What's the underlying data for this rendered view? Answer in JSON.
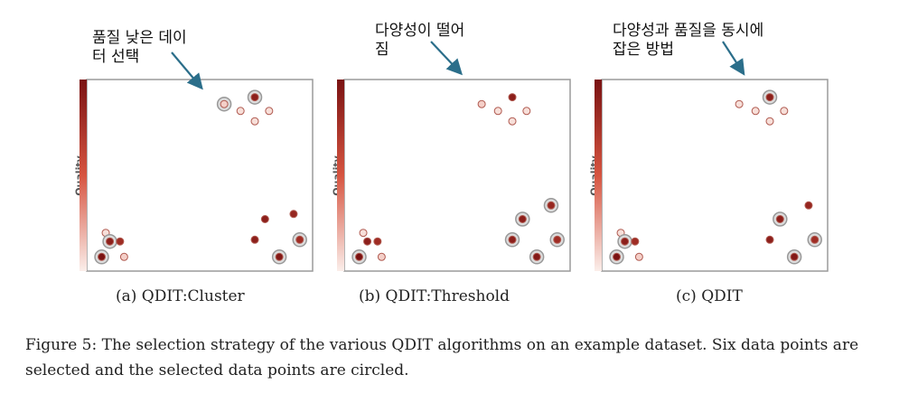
{
  "caption": "Figure 5: The selection strategy of the various QDIT algorithms on an example dataset. Six data points are selected and the selected data points are circled.",
  "colors": {
    "quality_high": "#7a1212",
    "quality_low": "#fbeeea",
    "selection_ring": "#999999",
    "arrow": "#2b6e8a",
    "frame": "#9a9a9a"
  },
  "chart_data": [
    {
      "type": "scatter",
      "subcaption": "(a) QDIT:Cluster",
      "annotation": "품질 낮은 데이\n터 선택",
      "ylabel": "Quality",
      "colorbar": "quality",
      "points": [
        {
          "x": 62,
          "y": 92,
          "quality": 0.1,
          "selected": true
        },
        {
          "x": 77,
          "y": 96,
          "quality": 0.9,
          "selected": true
        },
        {
          "x": 70,
          "y": 88,
          "quality": 0.05,
          "selected": false
        },
        {
          "x": 84,
          "y": 88,
          "quality": 0.05,
          "selected": false
        },
        {
          "x": 77,
          "y": 82,
          "quality": 0.05,
          "selected": false
        },
        {
          "x": 96,
          "y": 28,
          "quality": 0.85,
          "selected": false
        },
        {
          "x": 82,
          "y": 25,
          "quality": 0.9,
          "selected": false
        },
        {
          "x": 77,
          "y": 13,
          "quality": 0.9,
          "selected": false
        },
        {
          "x": 99,
          "y": 13,
          "quality": 0.8,
          "selected": true
        },
        {
          "x": 89,
          "y": 3,
          "quality": 0.95,
          "selected": true
        },
        {
          "x": 4,
          "y": 17,
          "quality": 0.05,
          "selected": false
        },
        {
          "x": 6,
          "y": 12,
          "quality": 0.9,
          "selected": true
        },
        {
          "x": 11,
          "y": 12,
          "quality": 0.8,
          "selected": false
        },
        {
          "x": 2,
          "y": 3,
          "quality": 1.0,
          "selected": true
        },
        {
          "x": 13,
          "y": 3,
          "quality": 0.1,
          "selected": false
        }
      ]
    },
    {
      "type": "scatter",
      "subcaption": "(b) QDIT:Threshold",
      "annotation": "다양성이 떨어\n짐",
      "ylabel": "Quality",
      "colorbar": "quality",
      "points": [
        {
          "x": 62,
          "y": 92,
          "quality": 0.1,
          "selected": false
        },
        {
          "x": 77,
          "y": 96,
          "quality": 0.9,
          "selected": false
        },
        {
          "x": 70,
          "y": 88,
          "quality": 0.05,
          "selected": false
        },
        {
          "x": 84,
          "y": 88,
          "quality": 0.05,
          "selected": false
        },
        {
          "x": 77,
          "y": 82,
          "quality": 0.05,
          "selected": false
        },
        {
          "x": 96,
          "y": 33,
          "quality": 0.85,
          "selected": true
        },
        {
          "x": 82,
          "y": 25,
          "quality": 0.9,
          "selected": true
        },
        {
          "x": 77,
          "y": 13,
          "quality": 0.9,
          "selected": true
        },
        {
          "x": 99,
          "y": 13,
          "quality": 0.8,
          "selected": true
        },
        {
          "x": 89,
          "y": 3,
          "quality": 0.95,
          "selected": true
        },
        {
          "x": 4,
          "y": 17,
          "quality": 0.05,
          "selected": false
        },
        {
          "x": 6,
          "y": 12,
          "quality": 0.9,
          "selected": false
        },
        {
          "x": 11,
          "y": 12,
          "quality": 0.8,
          "selected": false
        },
        {
          "x": 2,
          "y": 3,
          "quality": 1.0,
          "selected": true
        },
        {
          "x": 13,
          "y": 3,
          "quality": 0.1,
          "selected": false
        }
      ]
    },
    {
      "type": "scatter",
      "subcaption": "(c) QDIT",
      "annotation": "다양성과 품질을 동시에\n잡은 방법",
      "ylabel": "Quality",
      "colorbar": "quality",
      "points": [
        {
          "x": 62,
          "y": 92,
          "quality": 0.05,
          "selected": false
        },
        {
          "x": 77,
          "y": 96,
          "quality": 0.9,
          "selected": true
        },
        {
          "x": 70,
          "y": 88,
          "quality": 0.05,
          "selected": false
        },
        {
          "x": 84,
          "y": 88,
          "quality": 0.05,
          "selected": false
        },
        {
          "x": 77,
          "y": 82,
          "quality": 0.05,
          "selected": false
        },
        {
          "x": 96,
          "y": 33,
          "quality": 0.85,
          "selected": false
        },
        {
          "x": 82,
          "y": 25,
          "quality": 0.9,
          "selected": true
        },
        {
          "x": 77,
          "y": 13,
          "quality": 0.9,
          "selected": false
        },
        {
          "x": 99,
          "y": 13,
          "quality": 0.8,
          "selected": true
        },
        {
          "x": 89,
          "y": 3,
          "quality": 0.95,
          "selected": true
        },
        {
          "x": 4,
          "y": 17,
          "quality": 0.05,
          "selected": false
        },
        {
          "x": 6,
          "y": 12,
          "quality": 0.9,
          "selected": true
        },
        {
          "x": 11,
          "y": 12,
          "quality": 0.8,
          "selected": false
        },
        {
          "x": 2,
          "y": 3,
          "quality": 1.0,
          "selected": true
        },
        {
          "x": 13,
          "y": 3,
          "quality": 0.1,
          "selected": false
        }
      ]
    }
  ]
}
